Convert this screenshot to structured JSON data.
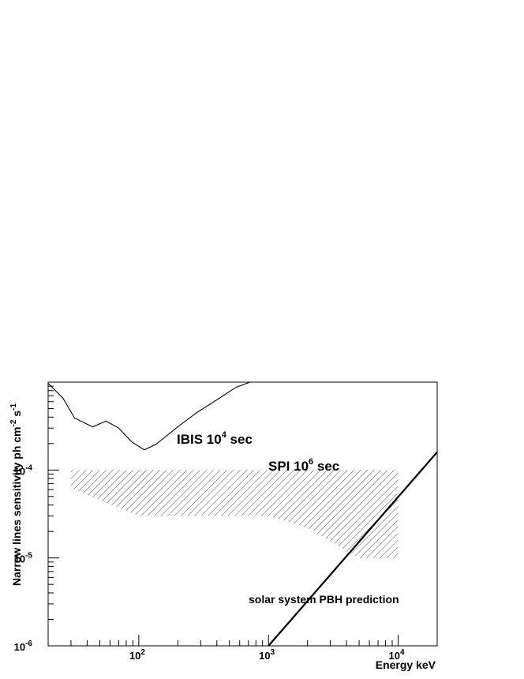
{
  "chart_data": {
    "type": "line",
    "title": "",
    "xlabel": "Energy keV",
    "ylabel": "Narrow lines sensitivity ph cm-2 s-1",
    "x_scale": "log",
    "y_scale": "log",
    "xlim": [
      20,
      20000
    ],
    "ylim": [
      1e-06,
      0.001
    ],
    "x_ticks": [
      {
        "value": 100,
        "base": "10",
        "exp": "2"
      },
      {
        "value": 1000,
        "base": "10",
        "exp": "3"
      },
      {
        "value": 10000,
        "base": "10",
        "exp": "4"
      }
    ],
    "y_ticks": [
      {
        "value": 0.0001,
        "base": "10",
        "exp": "-4"
      },
      {
        "value": 1e-05,
        "base": "10",
        "exp": "-5"
      },
      {
        "value": 1e-06,
        "base": "10",
        "exp": "-6"
      }
    ],
    "grid": false,
    "series": [
      {
        "name": "IBIS",
        "style": "line",
        "x": [
          20,
          26,
          32,
          44,
          56,
          70,
          88,
          110,
          135,
          200,
          280,
          420,
          560,
          720
        ],
        "y": [
          0.00097,
          0.00066,
          0.00039,
          0.00031,
          0.00036,
          0.0003,
          0.00021,
          0.00017,
          0.000195,
          0.00031,
          0.00045,
          0.00066,
          0.00087,
          0.001
        ]
      },
      {
        "name": "SPI",
        "style": "hatched-band",
        "x": [
          30,
          100,
          200,
          500,
          1000,
          2000,
          5000,
          10000
        ],
        "upper": [
          0.0001,
          0.0001,
          0.0001,
          0.0001,
          0.0001,
          0.0001,
          0.0001,
          0.0001
        ],
        "lower": [
          6.2e-05,
          3e-05,
          3e-05,
          3e-05,
          3e-05,
          2.2e-05,
          1e-05,
          1e-05
        ]
      },
      {
        "name": "solar system PBH prediction",
        "style": "thick-line",
        "x": [
          1000,
          20000
        ],
        "y": [
          1e-06,
          0.00016
        ]
      }
    ],
    "annotations": [
      {
        "key": "ibis",
        "prefix": "IBIS 10",
        "sup": "4",
        "suffix": " sec"
      },
      {
        "key": "spi",
        "prefix": "SPI 10",
        "sup": "6",
        "suffix": " sec"
      },
      {
        "key": "pbh",
        "text": "solar system PBH prediction"
      }
    ]
  }
}
